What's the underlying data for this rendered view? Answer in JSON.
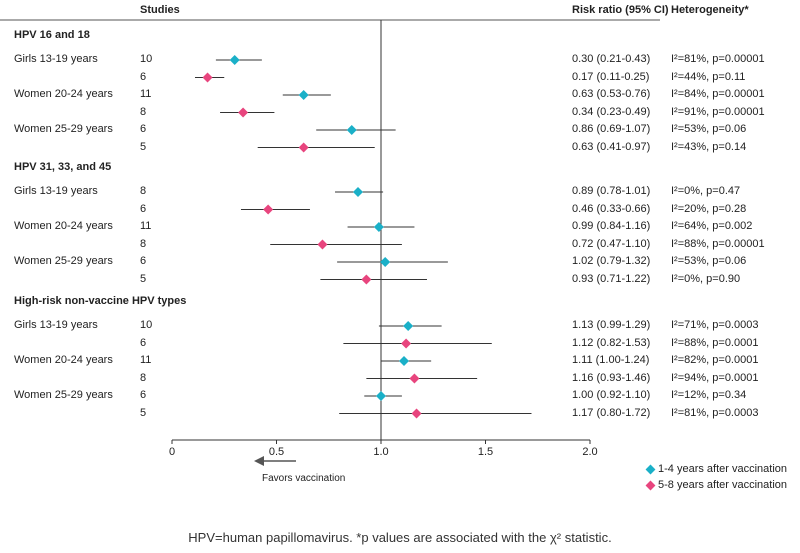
{
  "headers": {
    "studies": "Studies",
    "rr": "Risk ratio (95% CI)",
    "het": "Heterogeneity*"
  },
  "colors": {
    "period1": "#1ab0c8",
    "period2": "#e8457e"
  },
  "chart_data": {
    "type": "forest",
    "xlim": [
      0,
      2.0
    ],
    "xticks": [
      {
        "v": 0,
        "label": "0"
      },
      {
        "v": 0.5,
        "label": "0.5"
      },
      {
        "v": 1.0,
        "label": "1.0"
      },
      {
        "v": 1.5,
        "label": "1.5"
      },
      {
        "v": 2.0,
        "label": "2.0"
      }
    ],
    "reference_line": 1.0,
    "direction_label": "Favors vaccination",
    "legend": [
      {
        "name": "1-4 years after vaccination",
        "color": "#1ab0c8"
      },
      {
        "name": "5-8 years after vaccination",
        "color": "#e8457e"
      }
    ],
    "legend_placement": "bottom-right",
    "groups": [
      {
        "title": "HPV 16 and 18",
        "rows": [
          {
            "label": "Girls 13-19 years",
            "studies": "10",
            "rr": 0.3,
            "lo": 0.21,
            "hi": 0.43,
            "ci": "0.30 (0.21-0.43)",
            "het": "I²=81%, p=0.00001",
            "series": 1
          },
          {
            "label": "",
            "studies": "6",
            "rr": 0.17,
            "lo": 0.11,
            "hi": 0.25,
            "ci": "0.17 (0.11-0.25)",
            "het": "I²=44%, p=0.11",
            "series": 2
          },
          {
            "label": "Women 20-24 years",
            "studies": "11",
            "rr": 0.63,
            "lo": 0.53,
            "hi": 0.76,
            "ci": "0.63 (0.53-0.76)",
            "het": "I²=84%, p=0.00001",
            "series": 1
          },
          {
            "label": "",
            "studies": "8",
            "rr": 0.34,
            "lo": 0.23,
            "hi": 0.49,
            "ci": "0.34 (0.23-0.49)",
            "het": "I²=91%, p=0.00001",
            "series": 2
          },
          {
            "label": "Women 25-29 years",
            "studies": "6",
            "rr": 0.86,
            "lo": 0.69,
            "hi": 1.07,
            "ci": "0.86 (0.69-1.07)",
            "het": "I²=53%, p=0.06",
            "series": 1
          },
          {
            "label": "",
            "studies": "5",
            "rr": 0.63,
            "lo": 0.41,
            "hi": 0.97,
            "ci": "0.63 (0.41-0.97)",
            "het": "I²=43%, p=0.14",
            "series": 2
          }
        ]
      },
      {
        "title": "HPV 31, 33, and 45",
        "rows": [
          {
            "label": "Girls 13-19 years",
            "studies": "8",
            "rr": 0.89,
            "lo": 0.78,
            "hi": 1.01,
            "ci": "0.89 (0.78-1.01)",
            "het": "I²=0%, p=0.47",
            "series": 1
          },
          {
            "label": "",
            "studies": "6",
            "rr": 0.46,
            "lo": 0.33,
            "hi": 0.66,
            "ci": "0.46 (0.33-0.66)",
            "het": "I²=20%, p=0.28",
            "series": 2
          },
          {
            "label": "Women 20-24 years",
            "studies": "11",
            "rr": 0.99,
            "lo": 0.84,
            "hi": 1.16,
            "ci": "0.99 (0.84-1.16)",
            "het": "I²=64%, p=0.002",
            "series": 1
          },
          {
            "label": "",
            "studies": "8",
            "rr": 0.72,
            "lo": 0.47,
            "hi": 1.1,
            "ci": "0.72 (0.47-1.10)",
            "het": "I²=88%, p=0.00001",
            "series": 2
          },
          {
            "label": "Women 25-29 years",
            "studies": "6",
            "rr": 1.02,
            "lo": 0.79,
            "hi": 1.32,
            "ci": "1.02 (0.79-1.32)",
            "het": "I²=53%, p=0.06",
            "series": 1
          },
          {
            "label": "",
            "studies": "5",
            "rr": 0.93,
            "lo": 0.71,
            "hi": 1.22,
            "ci": "0.93 (0.71-1.22)",
            "het": "I²=0%, p=0.90",
            "series": 2
          }
        ]
      },
      {
        "title": "High-risk non-vaccine HPV types",
        "rows": [
          {
            "label": "Girls 13-19 years",
            "studies": "10",
            "rr": 1.13,
            "lo": 0.99,
            "hi": 1.29,
            "ci": "1.13 (0.99-1.29)",
            "het": "I²=71%, p=0.0003",
            "series": 1
          },
          {
            "label": "",
            "studies": "6",
            "rr": 1.12,
            "lo": 0.82,
            "hi": 1.53,
            "ci": "1.12 (0.82-1.53)",
            "het": "I²=88%, p=0.0001",
            "series": 2
          },
          {
            "label": "Women 20-24 years",
            "studies": "11",
            "rr": 1.11,
            "lo": 1.0,
            "hi": 1.24,
            "ci": "1.11 (1.00-1.24)",
            "het": "I²=82%, p=0.0001",
            "series": 1
          },
          {
            "label": "",
            "studies": "8",
            "rr": 1.16,
            "lo": 0.93,
            "hi": 1.46,
            "ci": "1.16 (0.93-1.46)",
            "het": "I²=94%, p=0.0001",
            "series": 2
          },
          {
            "label": "Women 25-29 years",
            "studies": "6",
            "rr": 1.0,
            "lo": 0.92,
            "hi": 1.1,
            "ci": "1.00 (0.92-1.10)",
            "het": "I²=12%, p=0.34",
            "series": 1
          },
          {
            "label": "",
            "studies": "5",
            "rr": 1.17,
            "lo": 0.8,
            "hi": 1.72,
            "ci": "1.17 (0.80-1.72)",
            "het": "I²=81%, p=0.0003",
            "series": 2
          }
        ]
      }
    ]
  },
  "footnote": "HPV=human papillomavirus. *p values are associated with the χ² statistic."
}
